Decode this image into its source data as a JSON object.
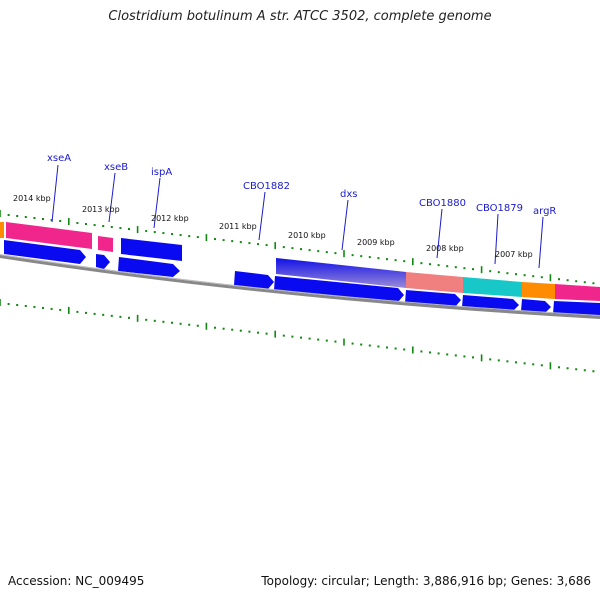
{
  "title": "Clostridium botulinum A str. ATCC 3502, complete genome",
  "accession": "Accession: NC_009495",
  "topology": "Topology: circular; Length: 3,886,916 bp; Genes: 3,686",
  "genes": [
    {
      "name": "xseA"
    },
    {
      "name": "xseB"
    },
    {
      "name": "ispA"
    },
    {
      "name": "CBO1882"
    },
    {
      "name": "dxs"
    },
    {
      "name": "CBO1880"
    },
    {
      "name": "CBO1879"
    },
    {
      "name": "argR"
    }
  ],
  "kbp_labels": [
    "2014 kbp",
    "2013 kbp",
    "2012 kbp",
    "2011 kbp",
    "2010 kbp",
    "2009 kbp",
    "2008 kbp",
    "2007 kbp"
  ],
  "colors": {
    "cds": "#0a0af0",
    "pink": "#f0268c",
    "orange": "#ff8c00",
    "salmon": "#f08080",
    "cyan": "#18c8c8",
    "backbone": "#777777",
    "ticks": "#118811",
    "gene_label": "#1a1acc"
  }
}
